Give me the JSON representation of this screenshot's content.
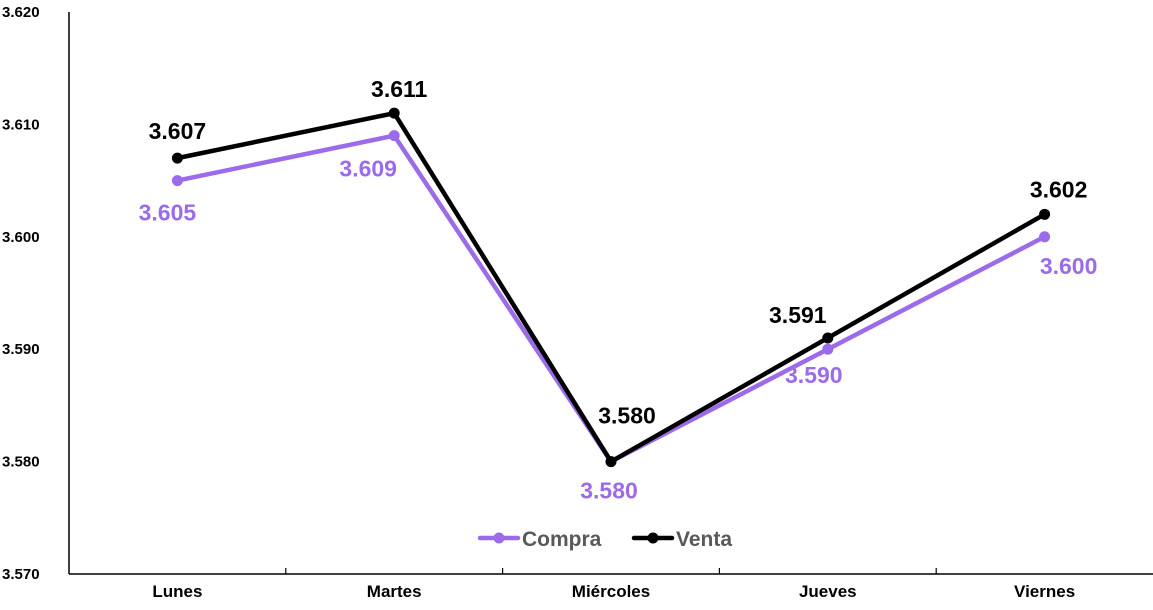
{
  "colors": {
    "compra": "#9c6bea",
    "venta": "#000000",
    "axis": "#000000",
    "legend_text": "#595959"
  },
  "chart_data": {
    "type": "line",
    "categories": [
      "Lunes",
      "Martes",
      "Miércoles",
      "Jueves",
      "Viernes"
    ],
    "series": [
      {
        "name": "Compra",
        "values": [
          3.605,
          3.609,
          3.58,
          3.59,
          3.6
        ],
        "labels": [
          "3.605",
          "3.609",
          "3.580",
          "3.590",
          "3.600"
        ]
      },
      {
        "name": "Venta",
        "values": [
          3.607,
          3.611,
          3.58,
          3.591,
          3.602
        ],
        "labels": [
          "3.607",
          "3.611",
          "3.580",
          "3.591",
          "3.602"
        ]
      }
    ],
    "yticks": [
      "3.570",
      "3.580",
      "3.590",
      "3.600",
      "3.610",
      "3.620"
    ],
    "ylim": [
      3.57,
      3.62
    ],
    "title": "",
    "xlabel": "",
    "ylabel": "",
    "grid": false,
    "legend_position": "bottom-center"
  }
}
